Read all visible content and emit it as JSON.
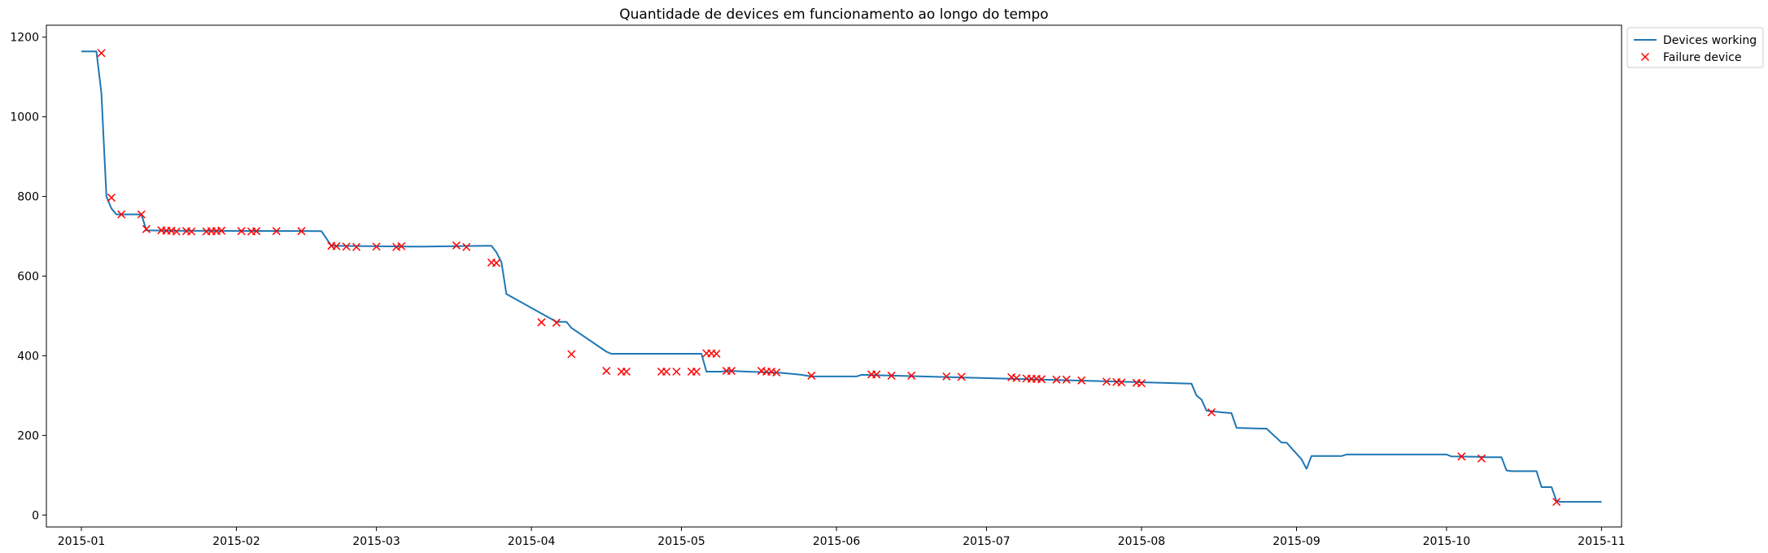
{
  "chart_data": {
    "type": "line",
    "title": "Quantidade de devices em funcionamento ao longo do tempo",
    "xlabel": "",
    "ylabel": "",
    "x_type": "date",
    "xlim": [
      "2014-12-25",
      "2015-11-05"
    ],
    "ylim": [
      -30,
      1230
    ],
    "x_ticks": [
      "2015-01-01",
      "2015-02-01",
      "2015-03-01",
      "2015-04-01",
      "2015-05-01",
      "2015-06-01",
      "2015-07-01",
      "2015-08-01",
      "2015-09-01",
      "2015-10-01",
      "2015-11-01"
    ],
    "x_tick_labels": [
      "2015-01",
      "2015-02",
      "2015-03",
      "2015-04",
      "2015-05",
      "2015-06",
      "2015-07",
      "2015-08",
      "2015-09",
      "2015-10",
      "2015-11"
    ],
    "y_ticks": [
      0,
      200,
      400,
      600,
      800,
      1000,
      1200
    ],
    "y_tick_labels": [
      "0",
      "200",
      "400",
      "600",
      "800",
      "1000",
      "1200"
    ],
    "grid": false,
    "legend": {
      "placement": "outside-top-right"
    },
    "series": [
      {
        "name": "Devices working",
        "type": "line",
        "color": "#1f77b4",
        "x": [
          "2015-01-01",
          "2015-01-04",
          "2015-01-05",
          "2015-01-06",
          "2015-01-07",
          "2015-01-08",
          "2015-01-09",
          "2015-01-10",
          "2015-01-13",
          "2015-01-14",
          "2015-01-19",
          "2015-02-18",
          "2015-02-20",
          "2015-03-10",
          "2015-03-23",
          "2015-03-24",
          "2015-03-25",
          "2015-03-26",
          "2015-03-27",
          "2015-04-06",
          "2015-04-08",
          "2015-04-09",
          "2015-04-16",
          "2015-04-17",
          "2015-05-05",
          "2015-05-06",
          "2015-05-09",
          "2015-05-10",
          "2015-05-21",
          "2015-05-25",
          "2015-05-27",
          "2015-06-05",
          "2015-06-06",
          "2015-08-11",
          "2015-08-12",
          "2015-08-13",
          "2015-08-14",
          "2015-08-17",
          "2015-08-19",
          "2015-08-20",
          "2015-08-25",
          "2015-08-26",
          "2015-08-29",
          "2015-08-30",
          "2015-09-02",
          "2015-09-03",
          "2015-09-04",
          "2015-09-10",
          "2015-09-11",
          "2015-10-01",
          "2015-10-02",
          "2015-10-08",
          "2015-10-09",
          "2015-10-12",
          "2015-10-13",
          "2015-10-14",
          "2015-10-19",
          "2015-10-20",
          "2015-10-22",
          "2015-10-23",
          "2015-10-24",
          "2015-11-01"
        ],
        "y": [
          1164,
          1164,
          1060,
          800,
          770,
          755,
          755,
          755,
          755,
          715,
          714,
          713,
          676,
          674,
          676,
          676,
          660,
          635,
          555,
          485,
          485,
          470,
          410,
          405,
          405,
          360,
          360,
          362,
          357,
          352,
          348,
          348,
          352,
          330,
          300,
          290,
          262,
          258,
          256,
          219,
          217,
          217,
          182,
          182,
          140,
          116,
          148,
          148,
          152,
          152,
          147,
          146,
          145,
          145,
          112,
          110,
          110,
          70,
          70,
          35,
          33,
          33
        ]
      },
      {
        "name": "Failure device",
        "type": "scatter",
        "marker": "x",
        "color": "#ff0000",
        "x": [
          "2015-01-05",
          "2015-01-07",
          "2015-01-09",
          "2015-01-13",
          "2015-01-14",
          "2015-01-17",
          "2015-01-18",
          "2015-01-19",
          "2015-01-20",
          "2015-01-22",
          "2015-01-23",
          "2015-01-26",
          "2015-01-27",
          "2015-01-28",
          "2015-01-29",
          "2015-02-02",
          "2015-02-04",
          "2015-02-05",
          "2015-02-09",
          "2015-02-14",
          "2015-02-20",
          "2015-02-21",
          "2015-02-23",
          "2015-02-25",
          "2015-03-01",
          "2015-03-05",
          "2015-03-06",
          "2015-03-17",
          "2015-03-19",
          "2015-03-24",
          "2015-03-25",
          "2015-04-03",
          "2015-04-06",
          "2015-04-09",
          "2015-04-16",
          "2015-04-19",
          "2015-04-20",
          "2015-04-27",
          "2015-04-28",
          "2015-04-30",
          "2015-05-03",
          "2015-05-04",
          "2015-05-06",
          "2015-05-07",
          "2015-05-08",
          "2015-05-10",
          "2015-05-11",
          "2015-05-17",
          "2015-05-18",
          "2015-05-19",
          "2015-05-20",
          "2015-05-27",
          "2015-06-08",
          "2015-06-09",
          "2015-06-12",
          "2015-06-16",
          "2015-06-23",
          "2015-06-26",
          "2015-07-06",
          "2015-07-07",
          "2015-07-09",
          "2015-07-10",
          "2015-07-11",
          "2015-07-12",
          "2015-07-15",
          "2015-07-17",
          "2015-07-20",
          "2015-07-25",
          "2015-07-27",
          "2015-07-28",
          "2015-07-31",
          "2015-08-01",
          "2015-08-15",
          "2015-10-04",
          "2015-10-08",
          "2015-10-23"
        ],
        "y": [
          1160,
          797,
          755,
          755,
          718,
          715,
          714,
          714,
          712,
          713,
          712,
          712,
          713,
          713,
          714,
          713,
          712,
          713,
          713,
          713,
          676,
          675,
          674,
          673,
          674,
          673,
          675,
          677,
          673,
          634,
          633,
          484,
          483,
          404,
          362,
          360,
          360,
          360,
          360,
          360,
          360,
          360,
          406,
          406,
          405,
          362,
          362,
          362,
          360,
          360,
          358,
          350,
          353,
          353,
          350,
          350,
          348,
          347,
          346,
          344,
          343,
          342,
          342,
          341,
          340,
          340,
          338,
          335,
          334,
          333,
          332,
          331,
          258,
          147,
          142,
          33
        ]
      }
    ]
  }
}
